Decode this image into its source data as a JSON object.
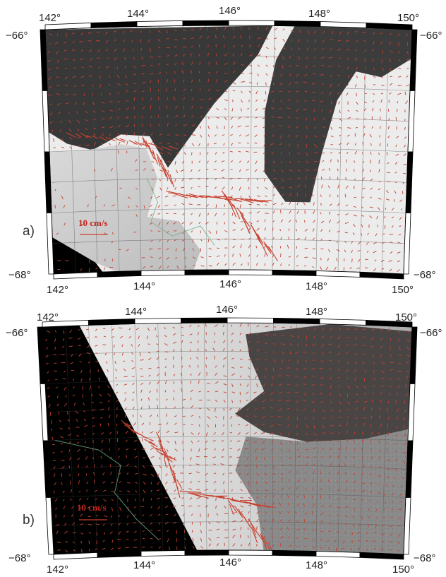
{
  "colors": {
    "vector": "#c8402e",
    "scale_text": "#c0271c",
    "frame": "#111111",
    "contour": "#6fb08a"
  },
  "panels": [
    {
      "label": "a)",
      "scale_text": "10 cm/s",
      "lon_ticks": [
        "142°",
        "144°",
        "146°",
        "148°",
        "150°"
      ],
      "lat_ticks": [
        "−66°",
        "−68°"
      ]
    },
    {
      "label": "b)",
      "scale_text": "10 cm/s",
      "lon_ticks": [
        "142°",
        "144°",
        "146°",
        "148°",
        "150°"
      ],
      "lat_ticks": [
        "−66°",
        "−68°"
      ]
    }
  ]
}
